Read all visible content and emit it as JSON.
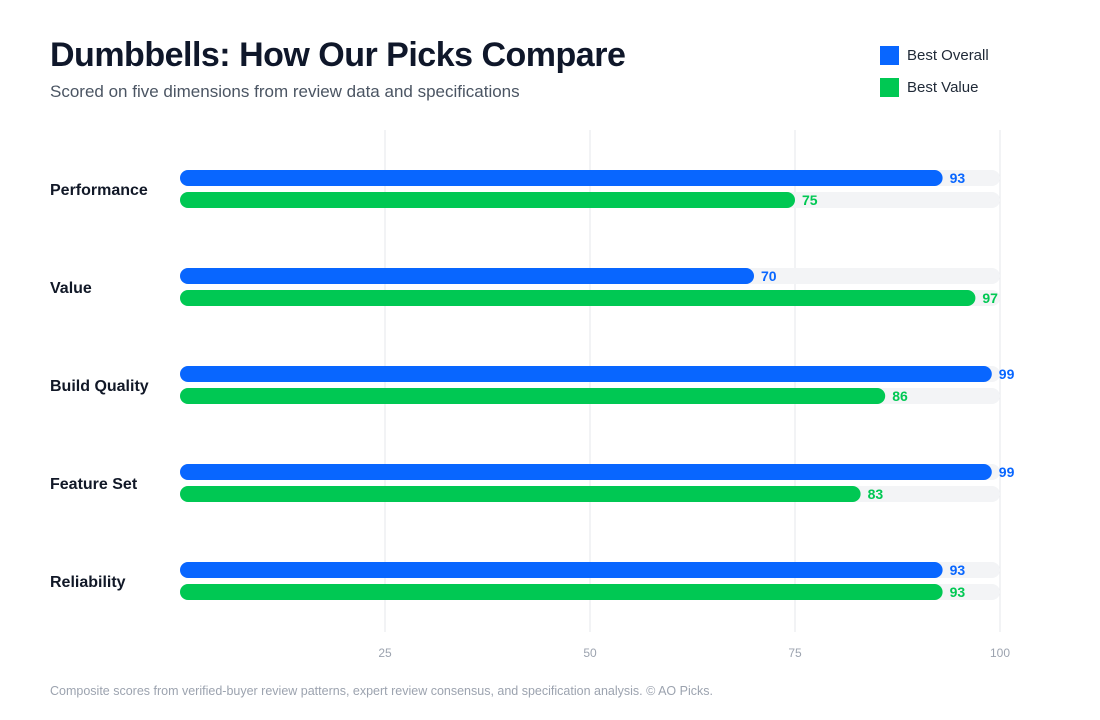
{
  "chart_data": {
    "type": "bar",
    "orientation": "horizontal",
    "title": "Dumbbells: How Our Picks Compare",
    "subtitle": "Scored on five dimensions from review data and specifications",
    "categories": [
      "Performance",
      "Value",
      "Build Quality",
      "Feature Set",
      "Reliability"
    ],
    "series": [
      {
        "name": "Best Overall",
        "color": "#0866ff",
        "values": [
          93,
          70,
          99,
          99,
          93
        ]
      },
      {
        "name": "Best Value",
        "color": "#00c853",
        "values": [
          75,
          97,
          86,
          83,
          93
        ]
      }
    ],
    "xlim": [
      0,
      100
    ],
    "x_ticks": [
      25,
      50,
      75,
      100
    ],
    "grid": "vertical",
    "legend_position": "top-right",
    "xlabel": "",
    "ylabel": ""
  },
  "footnote": "Composite scores from verified-buyer review patterns, expert review consensus, and specification analysis. © AO Picks."
}
